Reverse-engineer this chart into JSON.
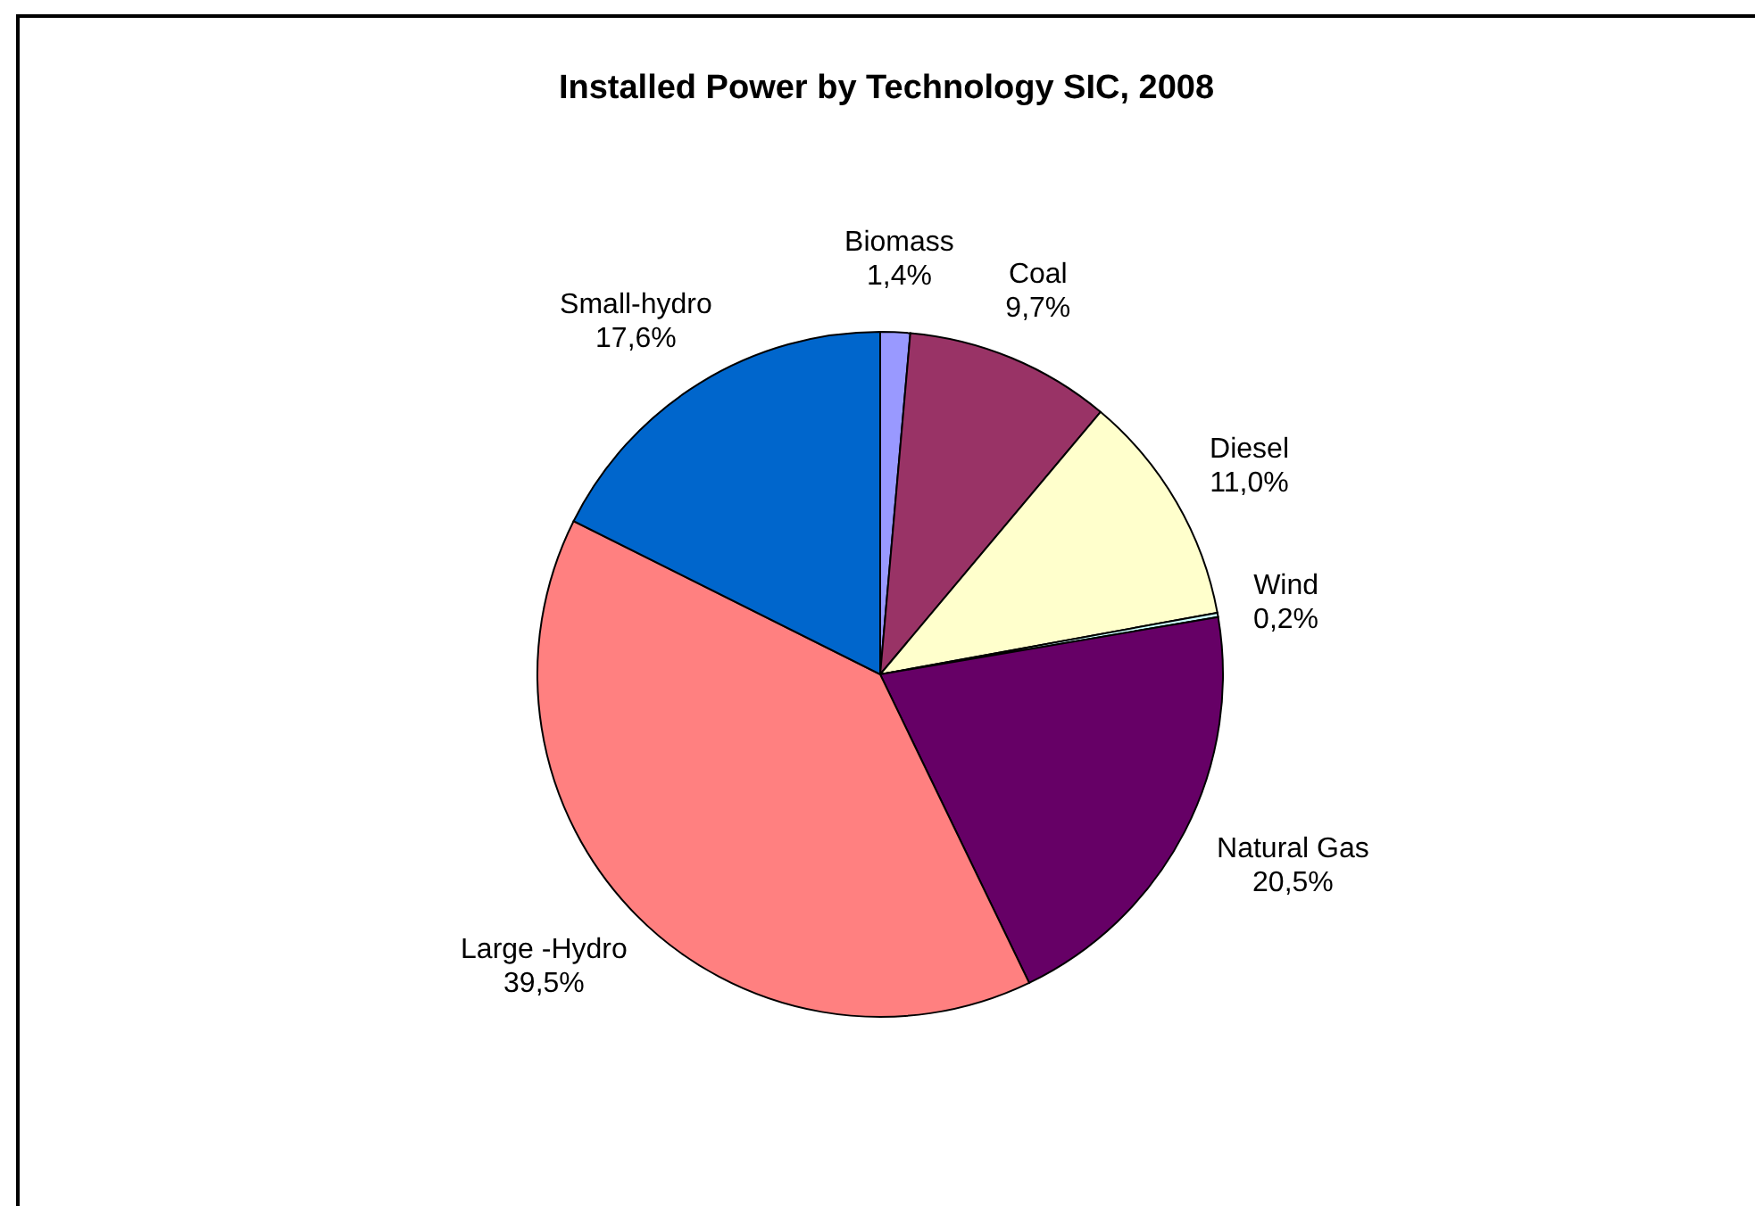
{
  "chart_data": {
    "type": "pie",
    "title": "Installed Power by Technology SIC, 2008",
    "categories": [
      "Biomass",
      "Coal",
      "Diesel",
      "Wind",
      "Natural Gas",
      "Large -Hydro",
      "Small-hydro"
    ],
    "values": [
      1.4,
      9.7,
      11.0,
      0.2,
      20.5,
      39.5,
      17.6
    ],
    "colors": [
      "#9999ff",
      "#993366",
      "#ffffcc",
      "#ccffff",
      "#660066",
      "#ff8080",
      "#0066cc"
    ],
    "value_labels": [
      "1,4%",
      "9,7%",
      "11,0%",
      "0,2%",
      "20,5%",
      "39,5%",
      "17,6%"
    ]
  }
}
